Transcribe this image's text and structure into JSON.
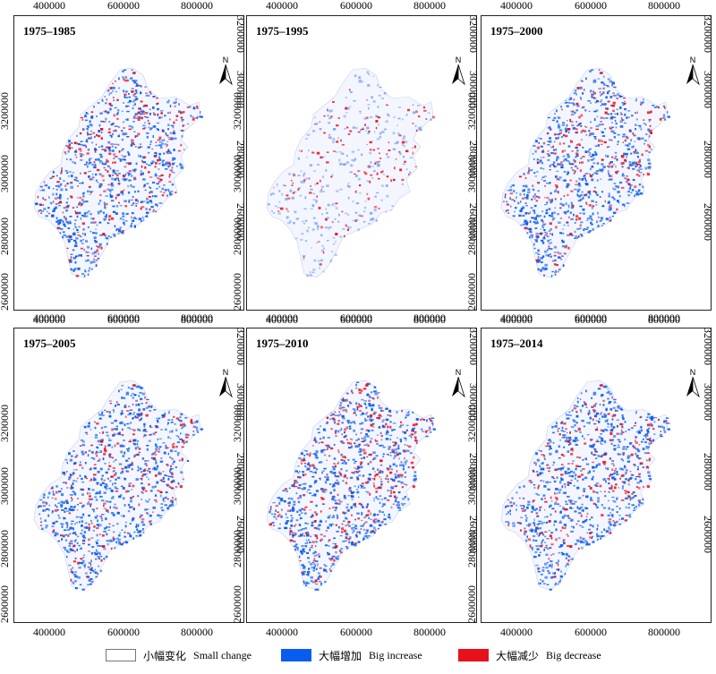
{
  "x_ticks": [
    "400000",
    "600000",
    "800000"
  ],
  "y_ticks": [
    "2600000",
    "2800000",
    "3000000",
    "3200000"
  ],
  "north_label": "N",
  "colors": {
    "small_change": "#ffffff",
    "big_increase": "#0a5cf0",
    "big_decrease": "#e8101a",
    "increase_pale": "#7fa7f5"
  },
  "panels": [
    {
      "period": "1975–1985",
      "increase": 0.55,
      "decrease": 0.18
    },
    {
      "period": "1975–1995",
      "increase": 0.2,
      "decrease": 0.06
    },
    {
      "period": "1975–2000",
      "increase": 0.55,
      "decrease": 0.15
    },
    {
      "period": "1975–2005",
      "increase": 0.55,
      "decrease": 0.12
    },
    {
      "period": "1975–2010",
      "increase": 0.6,
      "decrease": 0.2
    },
    {
      "period": "1975–2014",
      "increase": 0.55,
      "decrease": 0.14
    }
  ],
  "legend": [
    {
      "zh": "小幅变化",
      "en": "Small change",
      "color": "#ffffff"
    },
    {
      "zh": "大幅增加",
      "en": "Big increase",
      "color": "#0a5cf0"
    },
    {
      "zh": "大幅减少",
      "en": "Big decrease",
      "color": "#e8101a"
    }
  ]
}
